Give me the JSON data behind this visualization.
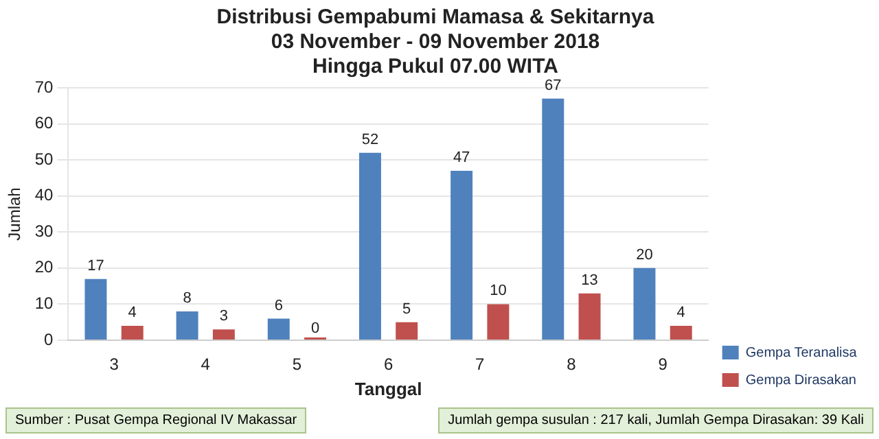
{
  "chart_data": {
    "type": "bar",
    "title": "Distribusi Gempabumi Mamasa & Sekitarnya\n03 November - 09 November 2018\nHingga Pukul 07.00 WITA",
    "xlabel": "Tanggal",
    "ylabel": "Jumlah",
    "categories": [
      "3",
      "4",
      "5",
      "6",
      "7",
      "8",
      "9"
    ],
    "series": [
      {
        "name": "Gempa Teranalisa",
        "color": "#4f81bd",
        "values": [
          17,
          8,
          6,
          52,
          47,
          67,
          20
        ]
      },
      {
        "name": "Gempa Dirasakan",
        "color": "#c0504d",
        "values": [
          4,
          3,
          0,
          5,
          10,
          13,
          4
        ]
      }
    ],
    "ylim": [
      0,
      70
    ],
    "yticks": [
      0,
      10,
      20,
      30,
      40,
      50,
      60,
      70
    ],
    "grid": "y",
    "legend": "bottom right",
    "data_labels": true,
    "annotations": [
      "Sumber : Pusat Gempa Regional IV Makassar",
      "Jumlah gempa susulan : 217 kali, Jumlah Gempa Dirasakan: 39 Kali"
    ]
  }
}
